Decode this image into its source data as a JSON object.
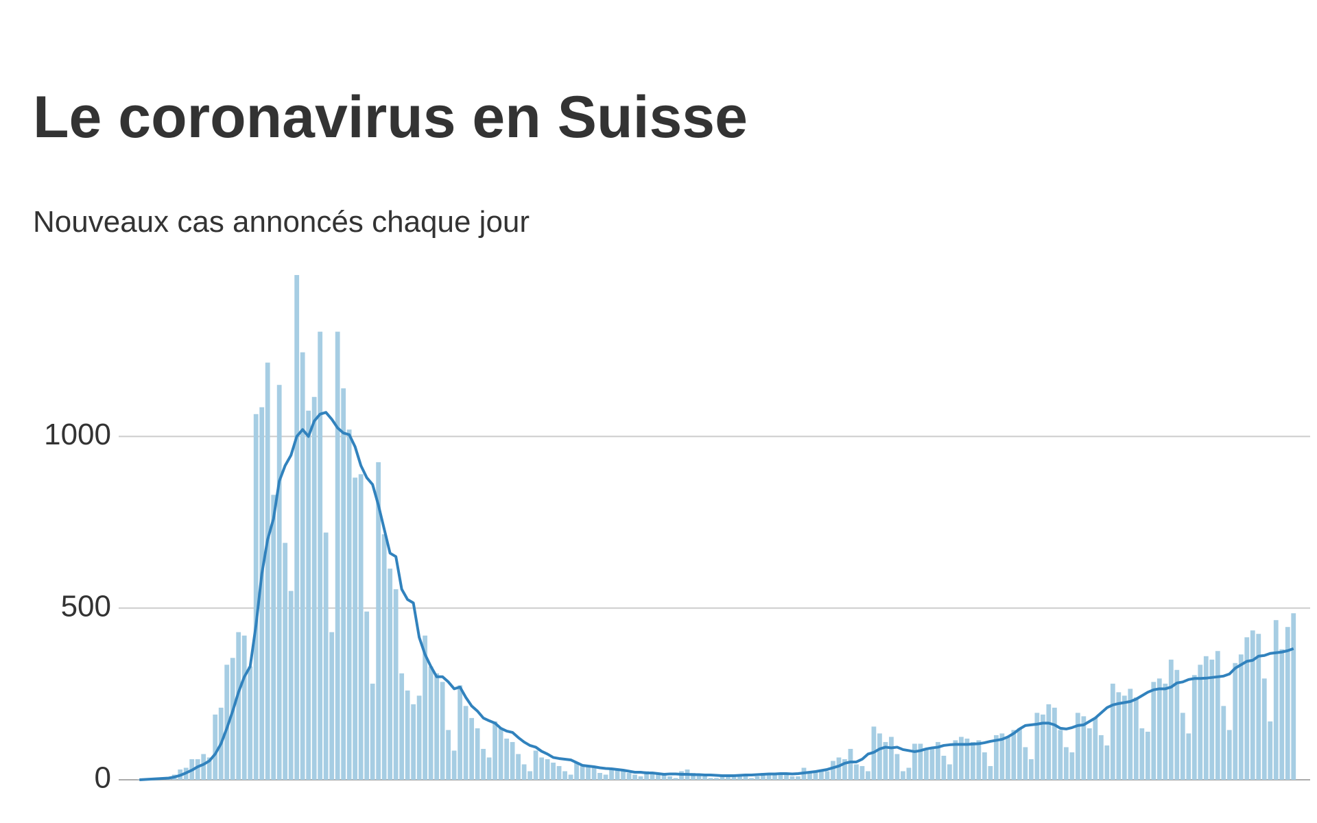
{
  "chart_data": {
    "type": "bar",
    "title": "Le coronavirus en Suisse",
    "subtitle": "Nouveaux cas annoncés chaque jour",
    "ylim": [
      0,
      1500
    ],
    "yticks": [
      0,
      500,
      1000
    ],
    "grid": true,
    "series": [
      {
        "type": "bar",
        "color": "#a6cde3",
        "values": [
          1,
          2,
          3,
          4,
          5,
          6,
          15,
          30,
          35,
          60,
          60,
          75,
          65,
          190,
          210,
          335,
          355,
          430,
          420,
          330,
          1065,
          1085,
          1215,
          830,
          1150,
          690,
          550,
          1470,
          1245,
          1075,
          1115,
          1305,
          720,
          430,
          1305,
          1140,
          1020,
          880,
          890,
          490,
          280,
          925,
          715,
          615,
          555,
          310,
          260,
          220,
          245,
          420,
          330,
          310,
          285,
          145,
          85,
          275,
          215,
          180,
          150,
          90,
          65,
          170,
          150,
          120,
          110,
          75,
          45,
          25,
          85,
          65,
          60,
          50,
          40,
          25,
          15,
          50,
          45,
          40,
          35,
          20,
          15,
          35,
          30,
          30,
          20,
          15,
          10,
          25,
          20,
          20,
          15,
          10,
          5,
          25,
          30,
          20,
          15,
          10,
          5,
          5,
          15,
          15,
          15,
          10,
          10,
          5,
          10,
          20,
          15,
          15,
          20,
          15,
          10,
          10,
          35,
          20,
          25,
          30,
          25,
          55,
          65,
          60,
          90,
          45,
          40,
          25,
          155,
          135,
          110,
          125,
          75,
          25,
          35,
          105,
          105,
          90,
          95,
          110,
          70,
          45,
          115,
          125,
          120,
          110,
          115,
          80,
          40,
          130,
          135,
          125,
          145,
          150,
          95,
          60,
          195,
          190,
          220,
          210,
          145,
          95,
          80,
          195,
          185,
          150,
          180,
          130,
          100,
          280,
          255,
          245,
          265,
          240,
          150,
          140,
          285,
          295,
          280,
          350,
          320,
          195,
          135,
          305,
          335,
          360,
          350,
          375,
          215,
          145,
          340,
          365,
          415,
          435,
          425,
          295,
          170,
          465,
          380,
          445,
          485
        ]
      },
      {
        "type": "line",
        "color": "#3182bd",
        "values": [
          0,
          1,
          2,
          3,
          4,
          5,
          8,
          13,
          20,
          28,
          38,
          45,
          55,
          75,
          105,
          150,
          200,
          255,
          300,
          330,
          450,
          600,
          700,
          760,
          870,
          915,
          945,
          1000,
          1020,
          1000,
          1045,
          1065,
          1070,
          1050,
          1025,
          1010,
          1005,
          970,
          915,
          880,
          860,
          800,
          730,
          660,
          650,
          555,
          525,
          515,
          415,
          365,
          330,
          300,
          300,
          285,
          265,
          270,
          240,
          215,
          200,
          180,
          172,
          165,
          150,
          142,
          138,
          123,
          110,
          100,
          95,
          83,
          75,
          65,
          62,
          60,
          58,
          50,
          42,
          40,
          38,
          35,
          33,
          32,
          30,
          28,
          25,
          22,
          22,
          20,
          20,
          18,
          16,
          17,
          17,
          16,
          16,
          15,
          15,
          14,
          14,
          13,
          12,
          12,
          12,
          13,
          14,
          14,
          15,
          16,
          17,
          17,
          18,
          18,
          17,
          18,
          20,
          22,
          24,
          27,
          30,
          35,
          40,
          48,
          52,
          52,
          60,
          75,
          80,
          90,
          95,
          93,
          95,
          88,
          85,
          82,
          85,
          90,
          93,
          95,
          100,
          102,
          103,
          103,
          103,
          104,
          105,
          108,
          112,
          115,
          118,
          125,
          135,
          148,
          158,
          160,
          162,
          165,
          165,
          160,
          150,
          148,
          152,
          158,
          160,
          170,
          180,
          195,
          210,
          218,
          222,
          225,
          228,
          235,
          245,
          255,
          262,
          265,
          265,
          270,
          282,
          285,
          292,
          295,
          295,
          296,
          298,
          300,
          302,
          308,
          325,
          335,
          345,
          348,
          360,
          362,
          368,
          370,
          372,
          376,
          382
        ]
      }
    ]
  }
}
